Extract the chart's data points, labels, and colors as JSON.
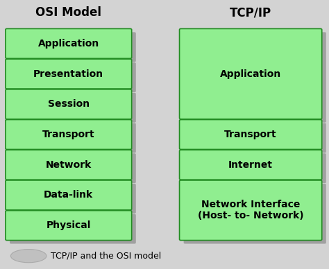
{
  "bg_color": "#d3d3d3",
  "box_fill": "#90EE90",
  "box_edge": "#228B22",
  "shadow_color": "#a0a0a0",
  "text_color": "#000000",
  "title_color": "#000000",
  "osi_title": "OSI Model",
  "tcp_title": "TCP/IP",
  "osi_layers": [
    "Application",
    "Presentation",
    "Session",
    "Transport",
    "Network",
    "Data-link",
    "Physical"
  ],
  "tcp_layers": [
    {
      "label": "Application",
      "rows": 3
    },
    {
      "label": "Transport",
      "rows": 1
    },
    {
      "label": "Internet",
      "rows": 1
    },
    {
      "label": "Network Interface\n(Host- to- Network)",
      "rows": 2
    }
  ],
  "footer": "TCP/IP and the OSI model",
  "fig_width": 4.74,
  "fig_height": 3.88
}
